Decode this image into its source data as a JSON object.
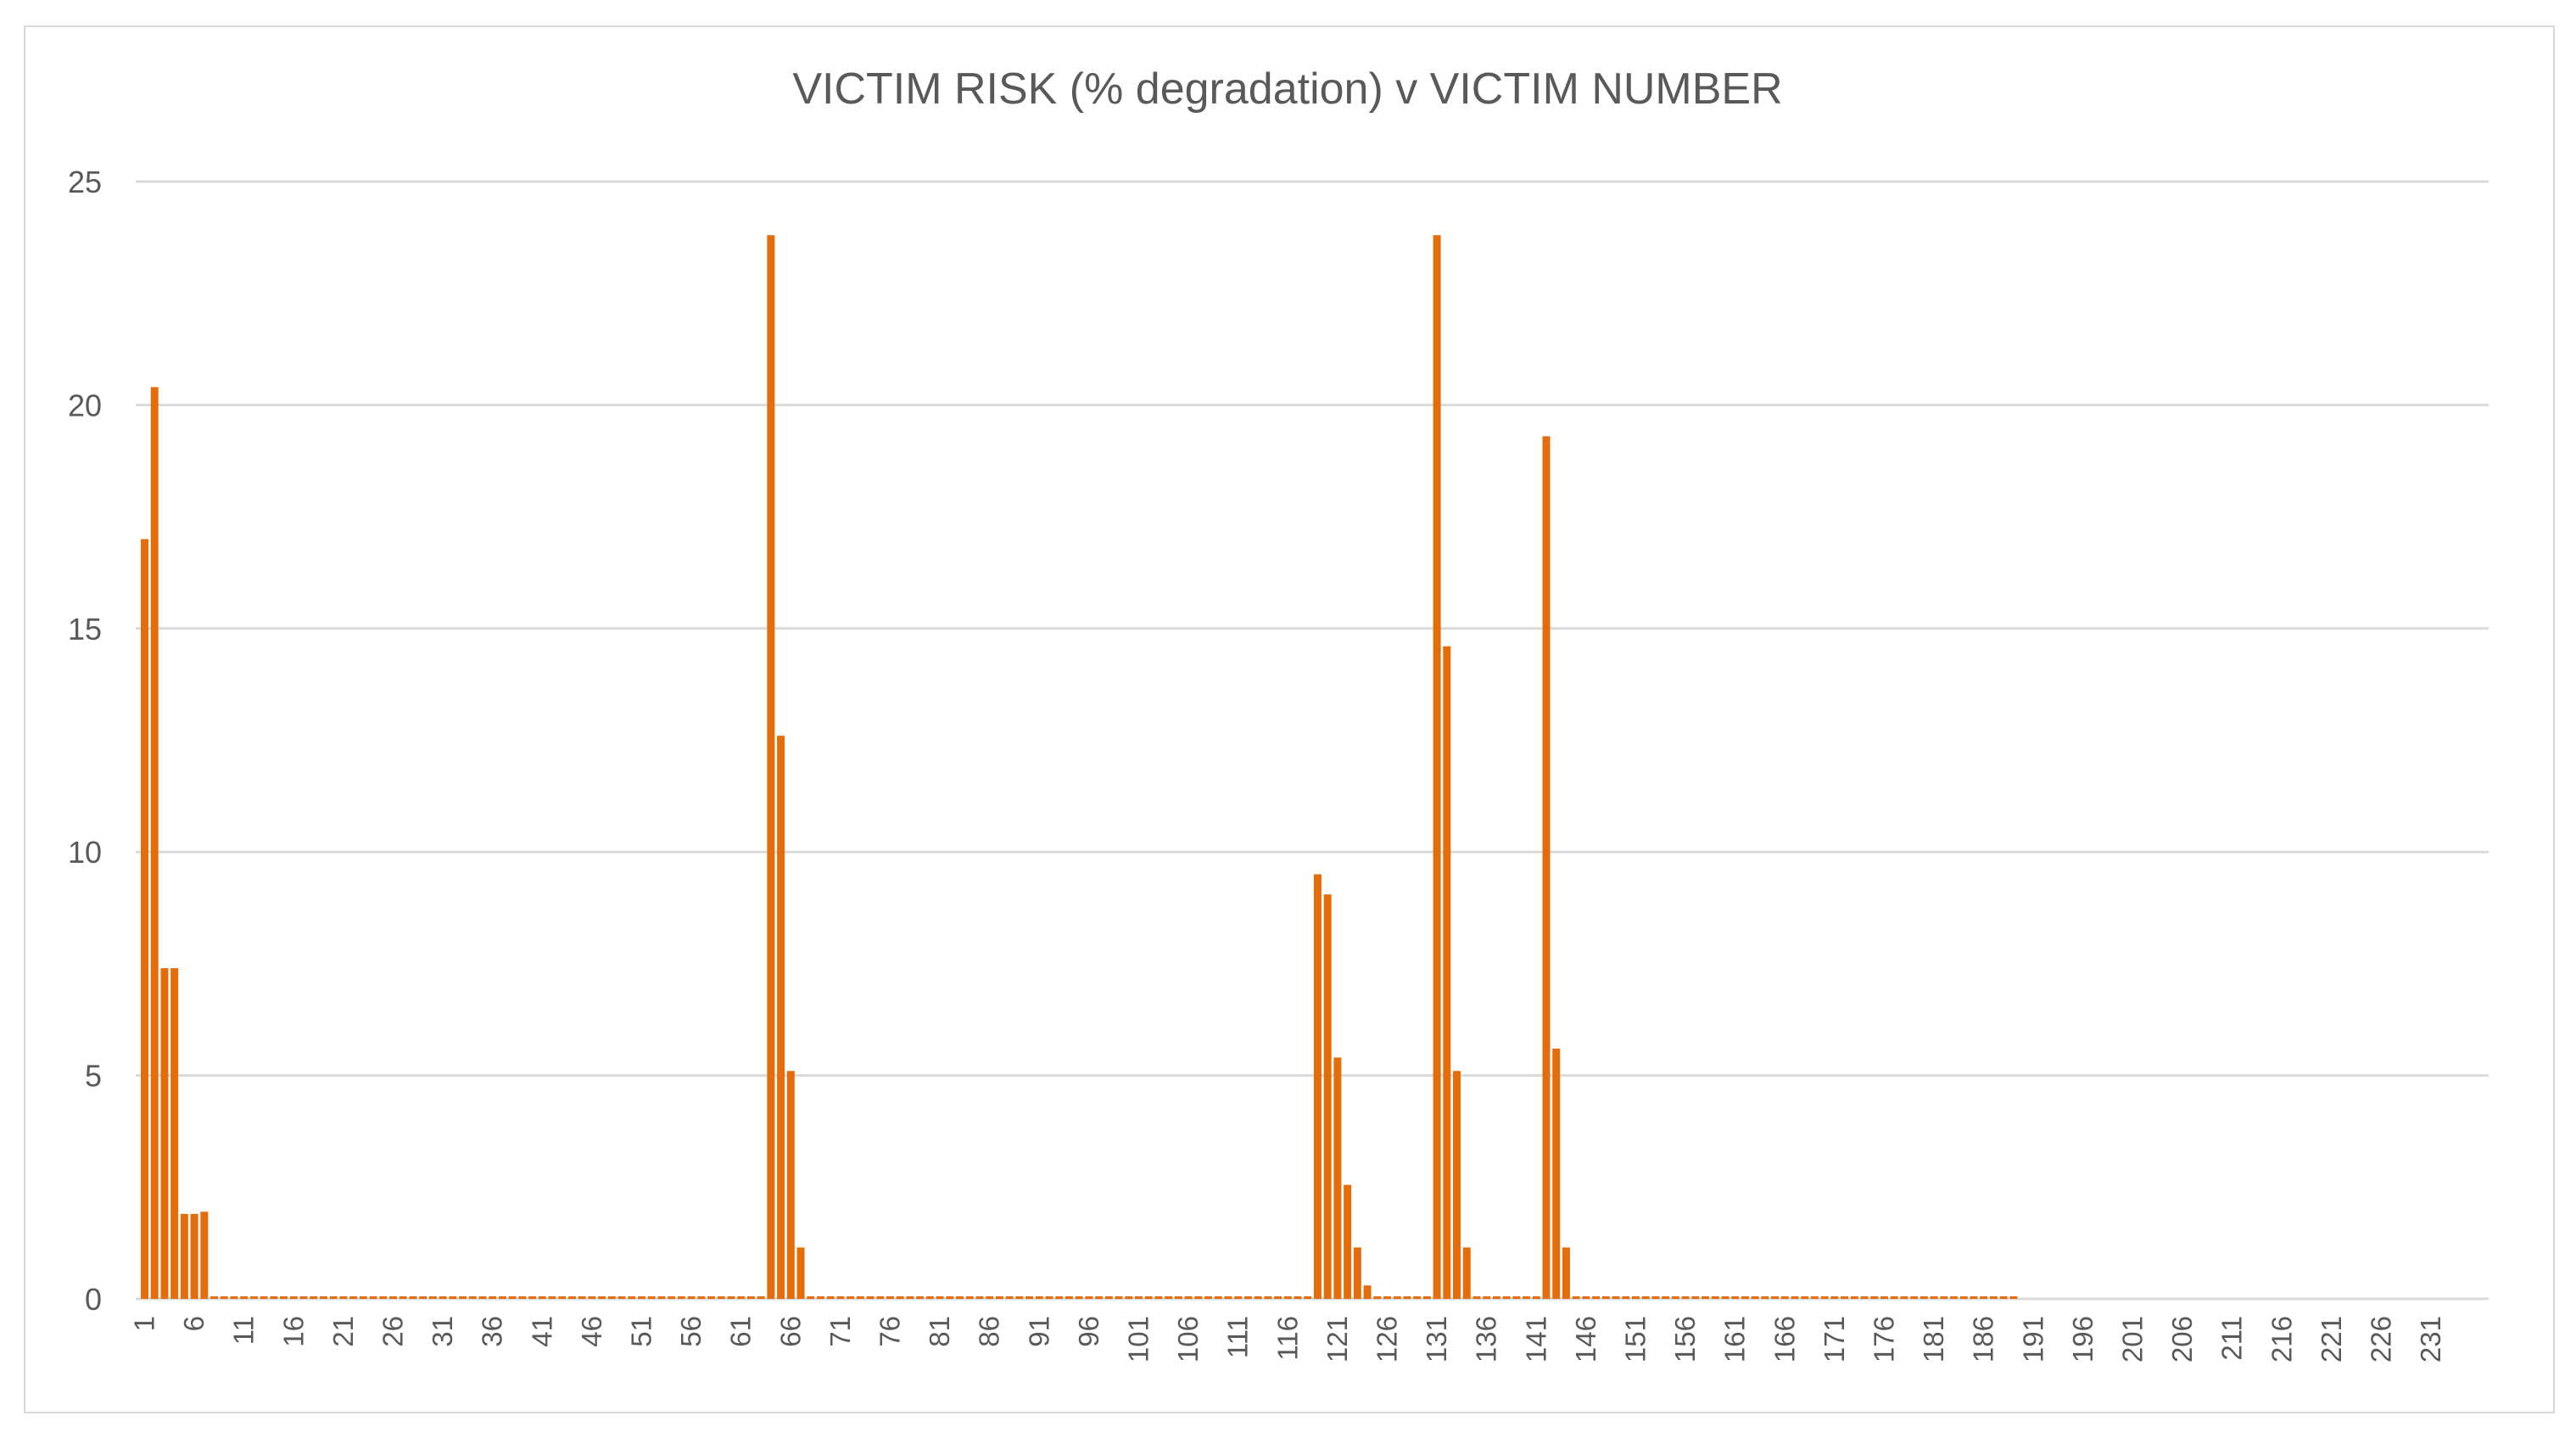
{
  "chart_data": {
    "type": "bar",
    "title": "VICTIM RISK (% degradation) v VICTIM NUMBER",
    "xlabel": "",
    "ylabel": "",
    "ylim": [
      0,
      25
    ],
    "yticks": [
      0,
      5,
      10,
      15,
      20,
      25
    ],
    "x_range": [
      1,
      235
    ],
    "xticks": [
      1,
      6,
      11,
      16,
      21,
      26,
      31,
      36,
      41,
      46,
      51,
      56,
      61,
      66,
      71,
      76,
      81,
      86,
      91,
      96,
      101,
      106,
      111,
      116,
      121,
      126,
      131,
      136,
      141,
      146,
      151,
      156,
      161,
      166,
      171,
      176,
      181,
      186,
      191,
      196,
      201,
      206,
      211,
      216,
      221,
      226,
      231
    ],
    "grid": "horizontal",
    "legend": "none",
    "bar_color": "#e46c0a",
    "zero_values_through": 189,
    "points": [
      {
        "x": 1,
        "y": 17.0
      },
      {
        "x": 2,
        "y": 20.4
      },
      {
        "x": 3,
        "y": 7.4
      },
      {
        "x": 4,
        "y": 7.4
      },
      {
        "x": 5,
        "y": 1.9
      },
      {
        "x": 6,
        "y": 1.9
      },
      {
        "x": 7,
        "y": 1.95
      },
      {
        "x": 64,
        "y": 23.8
      },
      {
        "x": 65,
        "y": 12.6
      },
      {
        "x": 66,
        "y": 5.1
      },
      {
        "x": 67,
        "y": 1.15
      },
      {
        "x": 119,
        "y": 9.5
      },
      {
        "x": 120,
        "y": 9.05
      },
      {
        "x": 121,
        "y": 5.4
      },
      {
        "x": 122,
        "y": 2.55
      },
      {
        "x": 123,
        "y": 1.15
      },
      {
        "x": 124,
        "y": 0.3
      },
      {
        "x": 131,
        "y": 23.8
      },
      {
        "x": 132,
        "y": 14.6
      },
      {
        "x": 133,
        "y": 5.1
      },
      {
        "x": 134,
        "y": 1.15
      },
      {
        "x": 142,
        "y": 19.3
      },
      {
        "x": 143,
        "y": 5.6
      },
      {
        "x": 144,
        "y": 1.15
      }
    ]
  }
}
